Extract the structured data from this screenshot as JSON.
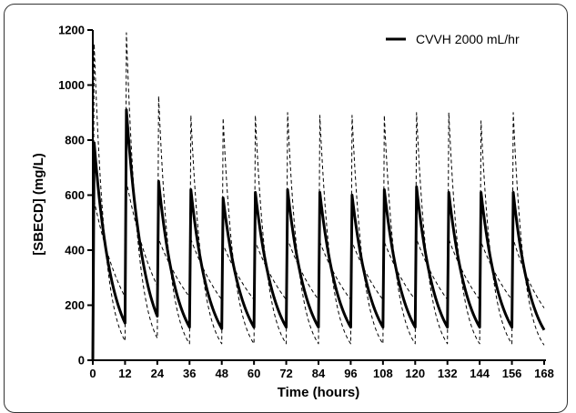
{
  "chart_data": {
    "type": "line",
    "title": "",
    "xlabel": "Time (hours)",
    "ylabel": "[SBECD] (mg/L)",
    "xlim": [
      0,
      168
    ],
    "ylim": [
      0,
      1200
    ],
    "x_ticks": [
      "0",
      "12",
      "24",
      "36",
      "48",
      "60",
      "72",
      "84",
      "96",
      "108",
      "120",
      "132",
      "144",
      "156",
      "168"
    ],
    "y_ticks": [
      "0",
      "200",
      "400",
      "600",
      "800",
      "1000",
      "1200"
    ],
    "grid": false,
    "legend_position": "top-right",
    "series": [
      {
        "name": "CVVH 2000 mL/hr",
        "style": "solid",
        "color": "#000000",
        "dose_times": [
          0,
          12,
          24,
          36,
          48,
          60,
          72,
          84,
          96,
          108,
          120,
          132,
          144,
          156
        ],
        "peaks": [
          790,
          910,
          650,
          620,
          590,
          610,
          620,
          610,
          600,
          620,
          630,
          610,
          610,
          610
        ],
        "troughs": [
          135,
          160,
          120,
          115,
          120,
          120,
          120,
          120,
          120,
          120,
          120,
          120,
          120,
          110
        ]
      },
      {
        "name": "",
        "style": "dashed",
        "color": "#000000",
        "dose_times": [
          0,
          12,
          24,
          36,
          48,
          60,
          72,
          84,
          96,
          108,
          120,
          132,
          144,
          156
        ],
        "peaks": [
          1150,
          1190,
          960,
          890,
          880,
          890,
          900,
          890,
          890,
          890,
          900,
          900,
          870,
          900
        ],
        "troughs": [
          70,
          80,
          60,
          60,
          60,
          60,
          60,
          60,
          60,
          60,
          60,
          60,
          60,
          55
        ]
      },
      {
        "name": "",
        "style": "dashed",
        "color": "#000000",
        "dose_times": [
          0,
          12,
          24,
          36,
          48,
          60,
          72,
          84,
          96,
          108,
          120,
          132,
          144,
          156
        ],
        "peaks": [
          580,
          650,
          440,
          440,
          420,
          430,
          440,
          430,
          430,
          430,
          440,
          440,
          430,
          440
        ],
        "troughs": [
          230,
          270,
          230,
          220,
          220,
          220,
          220,
          220,
          220,
          220,
          220,
          220,
          220,
          190
        ]
      }
    ]
  }
}
